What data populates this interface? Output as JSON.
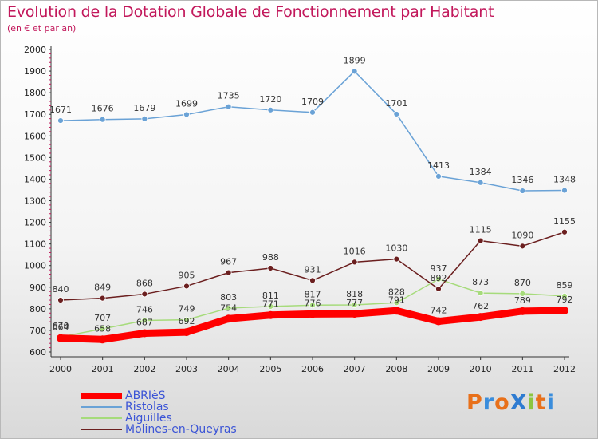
{
  "header": {
    "title": "Evolution de la Dotation Globale de Fonctionnement par Habitant",
    "subtitle": "(en € et par an)"
  },
  "logo": {
    "text": "ProXiti",
    "colors": [
      "#e8701a",
      "#3a8ddc",
      "#e8701a",
      "#2e7bd1",
      "#8cc63f",
      "#e8701a",
      "#3a8ddc"
    ]
  },
  "chart_data": {
    "type": "line",
    "x": [
      "2000",
      "2001",
      "2002",
      "2003",
      "2004",
      "2005",
      "2006",
      "2007",
      "2008",
      "2009",
      "2010",
      "2011",
      "2012"
    ],
    "ylim": [
      600,
      2000
    ],
    "yticks": [
      "600",
      "700",
      "800",
      "900",
      "1000",
      "1100",
      "1200",
      "1300",
      "1400",
      "1500",
      "1600",
      "1700",
      "1800",
      "1900",
      "2000"
    ],
    "grid": false,
    "legend_position": "bottom-left",
    "series": [
      {
        "name": "ABRIèS",
        "color": "#ff0000",
        "values": [
          664,
          658,
          687,
          692,
          754,
          771,
          776,
          777,
          791,
          742,
          762,
          789,
          792
        ],
        "labels": [
          "664",
          "658",
          "687",
          "692",
          "754",
          "771",
          "776",
          "777",
          "791",
          "742",
          "762",
          "789",
          "792"
        ]
      },
      {
        "name": "Ristolas",
        "color": "#6aa2d6",
        "values": [
          1671,
          1676,
          1679,
          1699,
          1735,
          1720,
          1709,
          1899,
          1701,
          1413,
          1384,
          1346,
          1348
        ],
        "labels": [
          "1671",
          "1676",
          "1679",
          "1699",
          "1735",
          "1720",
          "1709",
          "1899",
          "1701",
          "1413",
          "1384",
          "1346",
          "1348"
        ]
      },
      {
        "name": "Aiguilles",
        "color": "#a6db7b",
        "values": [
          670,
          707,
          746,
          749,
          803,
          811,
          817,
          818,
          828,
          937,
          873,
          870,
          859
        ],
        "labels": [
          "670",
          "707",
          "746",
          "749",
          "803",
          "811",
          "817",
          "818",
          "828",
          "937",
          "873",
          "870",
          "859"
        ]
      },
      {
        "name": "Molines-en-Queyras",
        "color": "#6b1f1f",
        "values": [
          840,
          849,
          868,
          905,
          967,
          988,
          931,
          1016,
          1030,
          892,
          1115,
          1090,
          1155
        ],
        "labels": [
          "840",
          "849",
          "868",
          "905",
          "967",
          "988",
          "931",
          "1016",
          "1030",
          "892",
          "1115",
          "1090",
          "1155"
        ]
      }
    ]
  }
}
